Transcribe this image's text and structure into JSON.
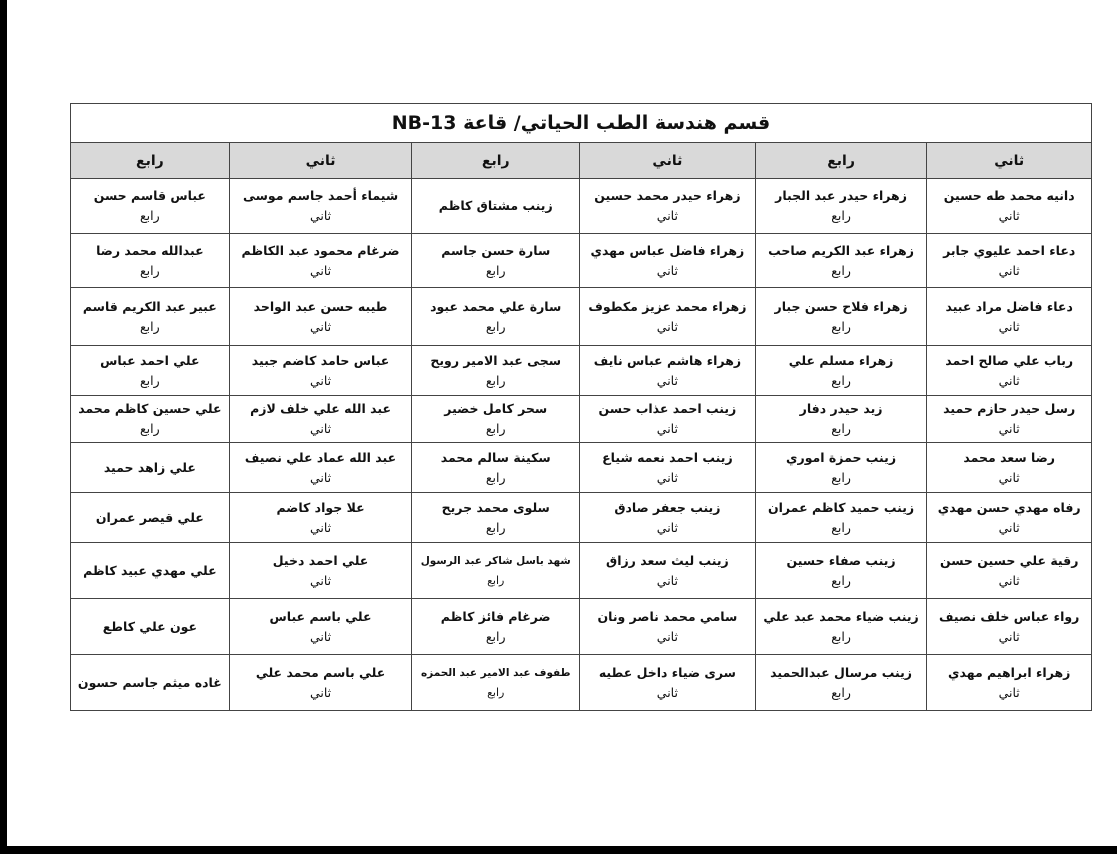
{
  "title": "قسم هندسة الطب الحياتي/ قاعة NB-13",
  "headers": [
    "ثاني",
    "رابع",
    "ثاني",
    "رابع",
    "ثاني",
    "رابع"
  ],
  "rows": [
    [
      {
        "name": "دانيه محمد طه حسين",
        "stage": "ثاني"
      },
      {
        "name": "زهراء حيدر عبد الجبار",
        "stage": "رابع"
      },
      {
        "name": "زهراء حيدر محمد حسين",
        "stage": "ثاني"
      },
      {
        "name": "زينب مشتاق كاظم",
        "stage": ""
      },
      {
        "name": "شيماء أحمد جاسم موسى",
        "stage": "ثاني"
      },
      {
        "name": "عباس قاسم حسن",
        "stage": "رابع"
      }
    ],
    [
      {
        "name": "دعاء احمد عليوي جابر",
        "stage": "ثاني"
      },
      {
        "name": "زهراء عبد الكريم صاحب",
        "stage": "رابع"
      },
      {
        "name": "زهراء فاضل عباس مهدي",
        "stage": "ثاني"
      },
      {
        "name": "سارة حسن جاسم",
        "stage": "رابع"
      },
      {
        "name": "ضرغام محمود عبد الكاظم",
        "stage": "ثاني"
      },
      {
        "name": "عبدالله محمد رضا",
        "stage": "رابع"
      }
    ],
    [
      {
        "name": "دعاء فاضل مراد عبيد",
        "stage": "ثاني"
      },
      {
        "name": "زهراء فلاح حسن جبار",
        "stage": "رابع"
      },
      {
        "name": "زهراء محمد عزيز مكطوف",
        "stage": "ثاني"
      },
      {
        "name": "سارة علي محمد عبود",
        "stage": "رابع"
      },
      {
        "name": "طيبه حسن عبد الواحد",
        "stage": "ثاني"
      },
      {
        "name": "عبير عبد الكريم قاسم",
        "stage": "رابع"
      }
    ],
    [
      {
        "name": "رباب علي صالح احمد",
        "stage": "ثاني"
      },
      {
        "name": "زهراء مسلم علي",
        "stage": "رابع"
      },
      {
        "name": "زهراء هاشم عباس نايف",
        "stage": "ثاني"
      },
      {
        "name": "سجى عبد الامير رويح",
        "stage": "رابع"
      },
      {
        "name": "عباس حامد كاضم جبيد",
        "stage": "ثاني"
      },
      {
        "name": "علي احمد عباس",
        "stage": "رابع"
      }
    ],
    [
      {
        "name": "رسل حيدر حازم حميد",
        "stage": "ثاني"
      },
      {
        "name": "زيد حيدر دفار",
        "stage": "رابع"
      },
      {
        "name": "زينب احمد عذاب حسن",
        "stage": "ثاني"
      },
      {
        "name": "سحر كامل خضير",
        "stage": "رابع"
      },
      {
        "name": "عبد الله علي خلف لازم",
        "stage": "ثاني"
      },
      {
        "name": "علي حسين كاظم محمد",
        "stage": "رابع"
      }
    ],
    [
      {
        "name": "رضا سعد محمد",
        "stage": "ثاني"
      },
      {
        "name": "زينب حمزة اموري",
        "stage": "رابع"
      },
      {
        "name": "زينب احمد نعمه شياع",
        "stage": "ثاني"
      },
      {
        "name": "سكينة سالم محمد",
        "stage": "رابع"
      },
      {
        "name": "عبد الله عماد علي نصيف",
        "stage": "ثاني"
      },
      {
        "name": "علي زاهد حميد",
        "stage": ""
      }
    ],
    [
      {
        "name": "رفاه مهدي حسن مهدي",
        "stage": "ثاني"
      },
      {
        "name": "زينب حميد كاظم عمران",
        "stage": "رابع"
      },
      {
        "name": "زينب جعفر صادق",
        "stage": "ثاني"
      },
      {
        "name": "سلوى محمد جريح",
        "stage": "رابع"
      },
      {
        "name": "علا جواد كاضم",
        "stage": "ثاني"
      },
      {
        "name": "علي قيصر عمران",
        "stage": ""
      }
    ],
    [
      {
        "name": "رقية علي حسين حسن",
        "stage": "ثاني"
      },
      {
        "name": "زينب صفاء حسين",
        "stage": "رابع"
      },
      {
        "name": "زينب ليث سعد رزاق",
        "stage": "ثاني"
      },
      {
        "name": "شهد باسل شاكر عبد الرسول",
        "stage": "رابع"
      },
      {
        "name": "علي احمد دخيل",
        "stage": "ثاني"
      },
      {
        "name": "علي مهدي عبيد كاظم",
        "stage": ""
      }
    ],
    [
      {
        "name": "رواء عباس خلف نصيف",
        "stage": "ثاني"
      },
      {
        "name": "زينب ضياء محمد عبد علي",
        "stage": "رابع"
      },
      {
        "name": "سامي محمد ناصر ونان",
        "stage": "ثاني"
      },
      {
        "name": "ضرغام فائز كاظم",
        "stage": "رابع"
      },
      {
        "name": "علي باسم عباس",
        "stage": "ثاني"
      },
      {
        "name": "عون علي كاطع",
        "stage": ""
      }
    ],
    [
      {
        "name": "زهراء ابراهيم مهدي",
        "stage": "ثاني"
      },
      {
        "name": "زينب مرسال عبدالحميد",
        "stage": "رابع"
      },
      {
        "name": "سرى ضياء داخل عطيه",
        "stage": "ثاني"
      },
      {
        "name": "طفوف عبد الامير عبد الحمزه",
        "stage": "رابع"
      },
      {
        "name": "علي باسم محمد علي",
        "stage": "ثاني"
      },
      {
        "name": "غاده ميثم جاسم حسون",
        "stage": ""
      }
    ]
  ]
}
